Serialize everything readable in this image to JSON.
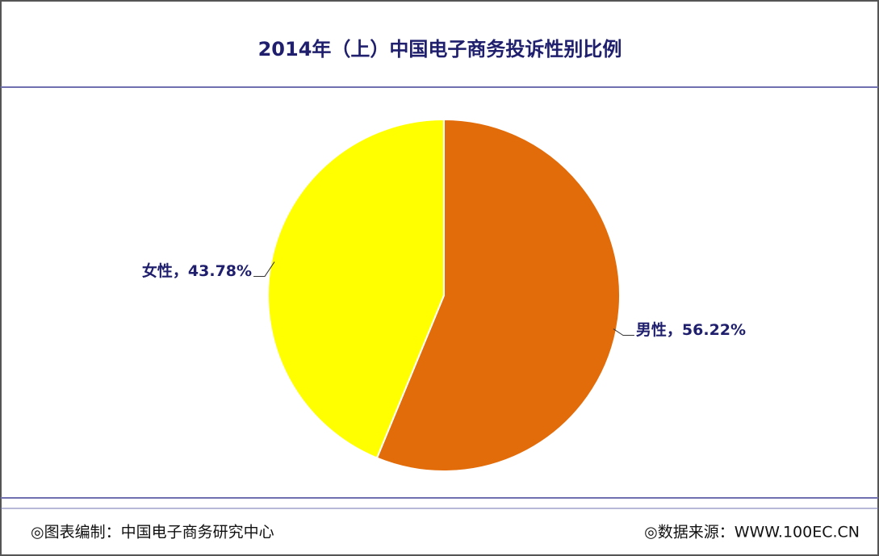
{
  "chart_data": {
    "type": "pie",
    "title": "2014年（上）中国电子商务投诉性别比例",
    "values": [
      56.22,
      43.78
    ],
    "value_labels": [
      "男性，56.22%",
      "女性，43.78%"
    ],
    "colors": [
      "#e36c0a",
      "#ffff00"
    ],
    "credit": "◎图表编制：中国电子商务研究中心",
    "source": "◎数据来源：WWW.100EC.CN"
  }
}
